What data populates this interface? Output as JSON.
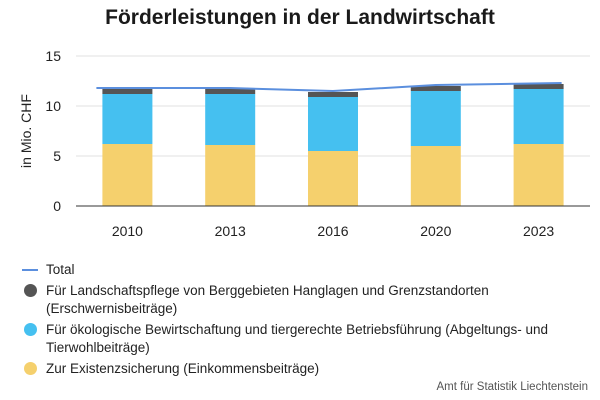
{
  "title": "Förderleistungen in der Landwirtschaft",
  "source": "Amt für Statistik Liechtenstein",
  "chart_data": {
    "type": "bar",
    "stacked": true,
    "categories": [
      "2010",
      "2013",
      "2016",
      "2020",
      "2023"
    ],
    "ylabel": "in Mio. CHF",
    "ylim": [
      0,
      15
    ],
    "yticks": [
      0,
      5,
      10,
      15
    ],
    "grid": true,
    "legend_position": "bottom",
    "series": [
      {
        "name": "Zur Existenzsicherung (Einkommensbeiträge)",
        "values": [
          6.2,
          6.1,
          5.5,
          6.0,
          6.2
        ],
        "color": "#F5D06D"
      },
      {
        "name": "Für ökologische Bewirtschaftung und tiergerechte Betriebsführung (Abgeltungs- und Tierwohlbeiträge)",
        "values": [
          5.0,
          5.1,
          5.4,
          5.5,
          5.5
        ],
        "color": "#45C0F0"
      },
      {
        "name": "Für Landschaftspflege von Berggebieten Hanglagen und Grenzstandorten (Erschwernisbeiträge)",
        "values": [
          0.5,
          0.5,
          0.5,
          0.5,
          0.5
        ],
        "color": "#555555"
      }
    ],
    "line": {
      "name": "Total",
      "values": [
        11.8,
        11.8,
        11.5,
        12.1,
        12.3
      ],
      "color": "#5B8FDE"
    }
  }
}
